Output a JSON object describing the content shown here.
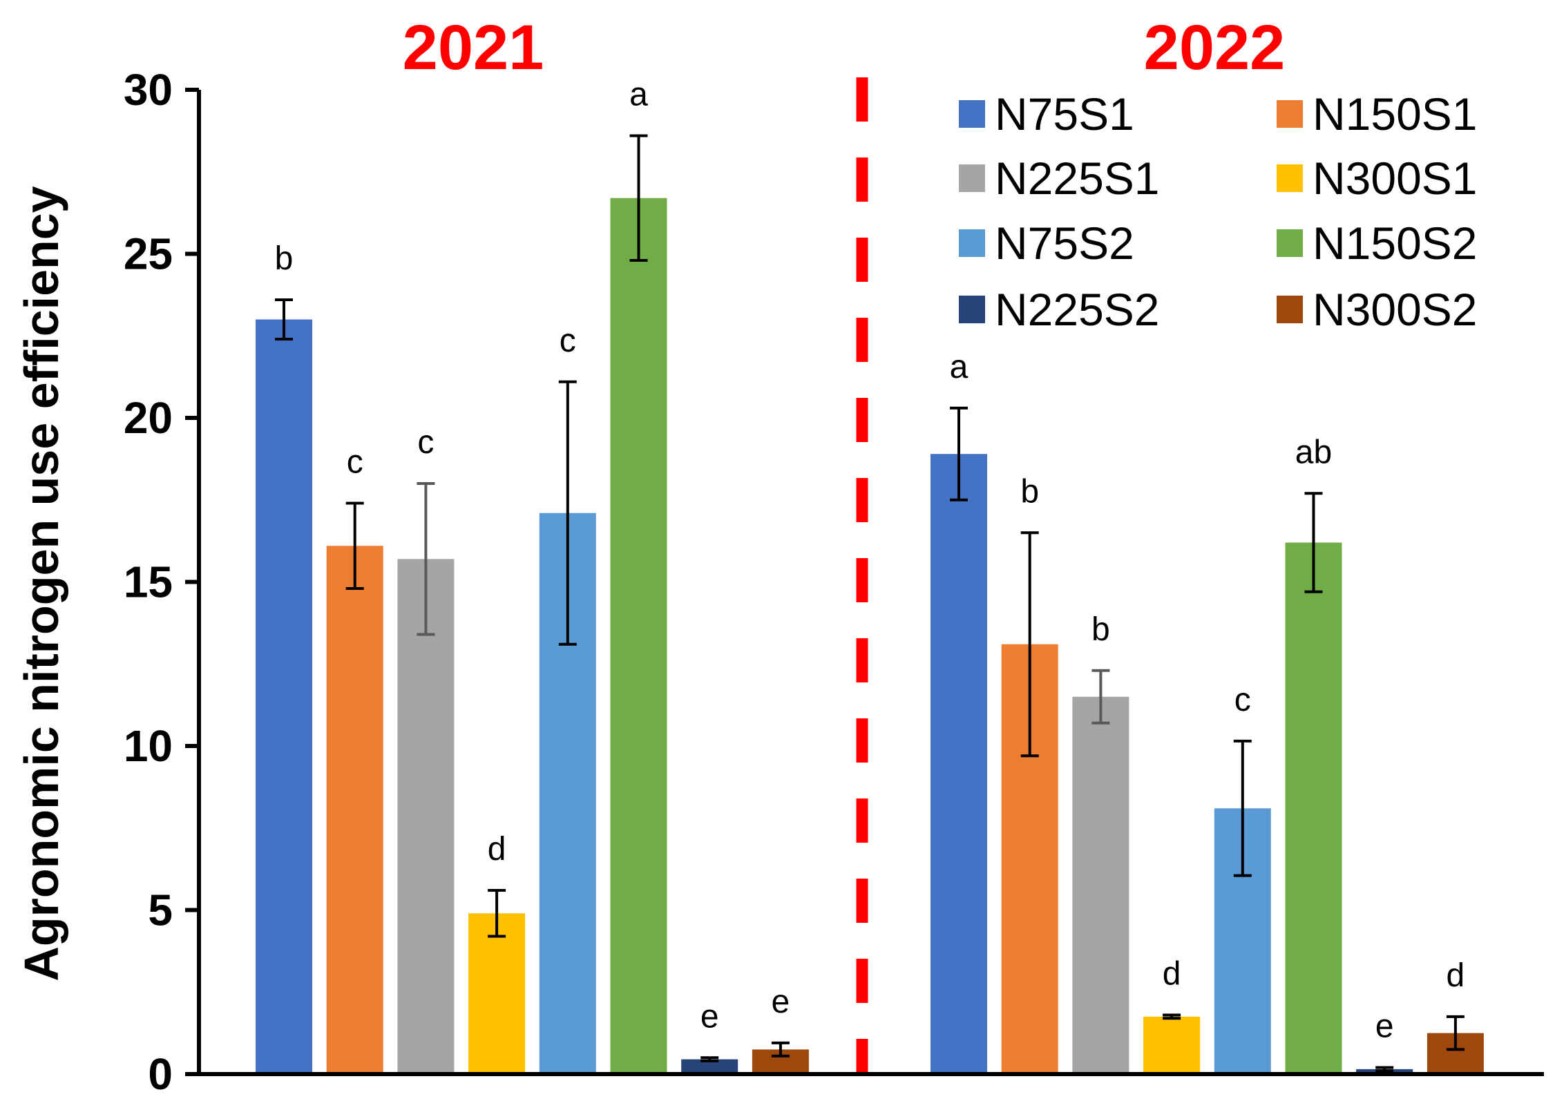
{
  "chart_data": {
    "type": "bar",
    "ylabel": "Agronomic nitrogen use efficiency",
    "xlabel": "",
    "ylim": [
      0,
      30
    ],
    "yticks": [
      "0",
      "5",
      "10",
      "15",
      "20",
      "25",
      "30"
    ],
    "legend_position": "top-right",
    "colors": {
      "N75S1": "#4472c4",
      "N150S1": "#ed7d31",
      "N225S1": "#a5a5a5",
      "N300S1": "#ffc000",
      "N75S2": "#5b9bd5",
      "N150S2": "#70ad47",
      "N225S2": "#264478",
      "N300S2": "#9e480e",
      "divider": "#ff0000",
      "year_label": "#ff0000"
    },
    "legend": [
      "N75S1",
      "N150S1",
      "N225S1",
      "N300S1",
      "N75S2",
      "N150S2",
      "N225S2",
      "N300S2"
    ],
    "groups": [
      {
        "label": "2021",
        "bars": [
          {
            "series": "N75S1",
            "value": 23.0,
            "error": 0.6,
            "letter": "b"
          },
          {
            "series": "N150S1",
            "value": 16.1,
            "error": 1.3,
            "letter": "c"
          },
          {
            "series": "N225S1",
            "value": 15.7,
            "error": 2.3,
            "letter": "c"
          },
          {
            "series": "N300S1",
            "value": 4.9,
            "error": 0.7,
            "letter": "d"
          },
          {
            "series": "N75S2",
            "value": 17.1,
            "error": 4.0,
            "letter": "c"
          },
          {
            "series": "N150S2",
            "value": 26.7,
            "error": 1.9,
            "letter": "a"
          },
          {
            "series": "N225S2",
            "value": 0.45,
            "error": 0.05,
            "letter": "e"
          },
          {
            "series": "N300S2",
            "value": 0.75,
            "error": 0.2,
            "letter": "e"
          }
        ]
      },
      {
        "label": "2022",
        "bars": [
          {
            "series": "N75S1",
            "value": 18.9,
            "error": 1.4,
            "letter": "a"
          },
          {
            "series": "N150S1",
            "value": 13.1,
            "error": 3.4,
            "letter": "b"
          },
          {
            "series": "N225S1",
            "value": 11.5,
            "error": 0.8,
            "letter": "b"
          },
          {
            "series": "N300S1",
            "value": 1.75,
            "error": 0.05,
            "letter": "d"
          },
          {
            "series": "N75S2",
            "value": 8.1,
            "error": 2.05,
            "letter": "c"
          },
          {
            "series": "N150S2",
            "value": 16.2,
            "error": 1.5,
            "letter": "ab"
          },
          {
            "series": "N225S2",
            "value": 0.15,
            "error": 0.05,
            "letter": "e"
          },
          {
            "series": "N300S2",
            "value": 1.25,
            "error": 0.5,
            "letter": "d"
          }
        ]
      }
    ]
  }
}
